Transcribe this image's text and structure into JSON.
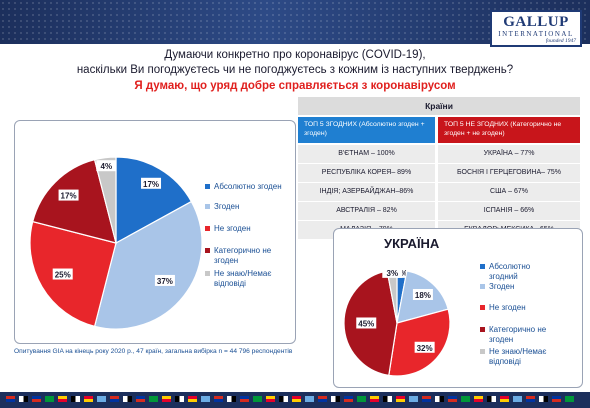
{
  "title_line1": "Думаючи конкретно про коронавірус (COVID-19),",
  "title_line2": "наскільки Ви погоджуєтесь чи не погоджуєтесь з кожним із наступних тверджень?",
  "subtitle": "Я думаю, що уряд добре справляється з коронавірусом",
  "logo": {
    "name": "GALLUP",
    "sub": "INTERNATIONAL",
    "founded": "founded 1947"
  },
  "colors": {
    "fully_agree": "#1f6fc9",
    "agree": "#a9c5e8",
    "disagree": "#e8262b",
    "strongly_disagree": "#a8141e",
    "dont_know": "#c8c8c8",
    "top_agree_header": "#1f7fd1",
    "top_disagree_header": "#c8151b"
  },
  "chart_data": [
    {
      "type": "pie",
      "title": "",
      "categories": [
        "Абсолютно згоден",
        "Згоден",
        "Не згоден",
        "Категорично не згоден",
        "Не знаю/Немає відповіді"
      ],
      "values": [
        17,
        37,
        25,
        17,
        4
      ],
      "labels": [
        "17%",
        "37%",
        "25%",
        "17%",
        "4%"
      ],
      "legend_position": "right"
    },
    {
      "type": "pie",
      "title": "УКРАЇНА",
      "categories": [
        "Абсолютно згодний",
        "Згоден",
        "Не згоден",
        "Категорично не згоден",
        "Не знаю/Немає відповіді"
      ],
      "values": [
        3,
        18,
        32,
        45,
        3
      ],
      "labels": [
        "3%",
        "18%",
        "32%",
        "45%",
        "3%"
      ],
      "legend_position": "right"
    }
  ],
  "table": {
    "header": "Країни",
    "col_agree": "ТОП 5 ЗГОДНИХ (Абсолютно згоден + згоден)",
    "col_disagree": "ТОП 5 НЕ ЗГОДНИХ (Категорично не згоден + не згоден)",
    "rows": [
      {
        "agree": "В'ЄТНАМ – 100%",
        "disagree": "УКРАЇНА – 77%"
      },
      {
        "agree": "РЕСПУБЛІКА КОРЕЯ– 89%",
        "disagree": "БОСНІЯ І ГЕРЦЕГОВИНА– 75%"
      },
      {
        "agree": "ІНДІЯ; АЗЕРБАЙДЖАН–86%",
        "disagree": "США – 67%"
      },
      {
        "agree": "АВСТРАЛІЯ – 82%",
        "disagree": "ІСПАНІЯ – 66%"
      },
      {
        "agree": "МАЛАЗІЯ – 79%",
        "disagree": "ЕКВАДОР; МЕКСИКА– 65%"
      }
    ]
  },
  "note": "Опитування GIA на кінець року 2020 р., 47 країн, загальна вибірка n = 44 796 респондентів"
}
